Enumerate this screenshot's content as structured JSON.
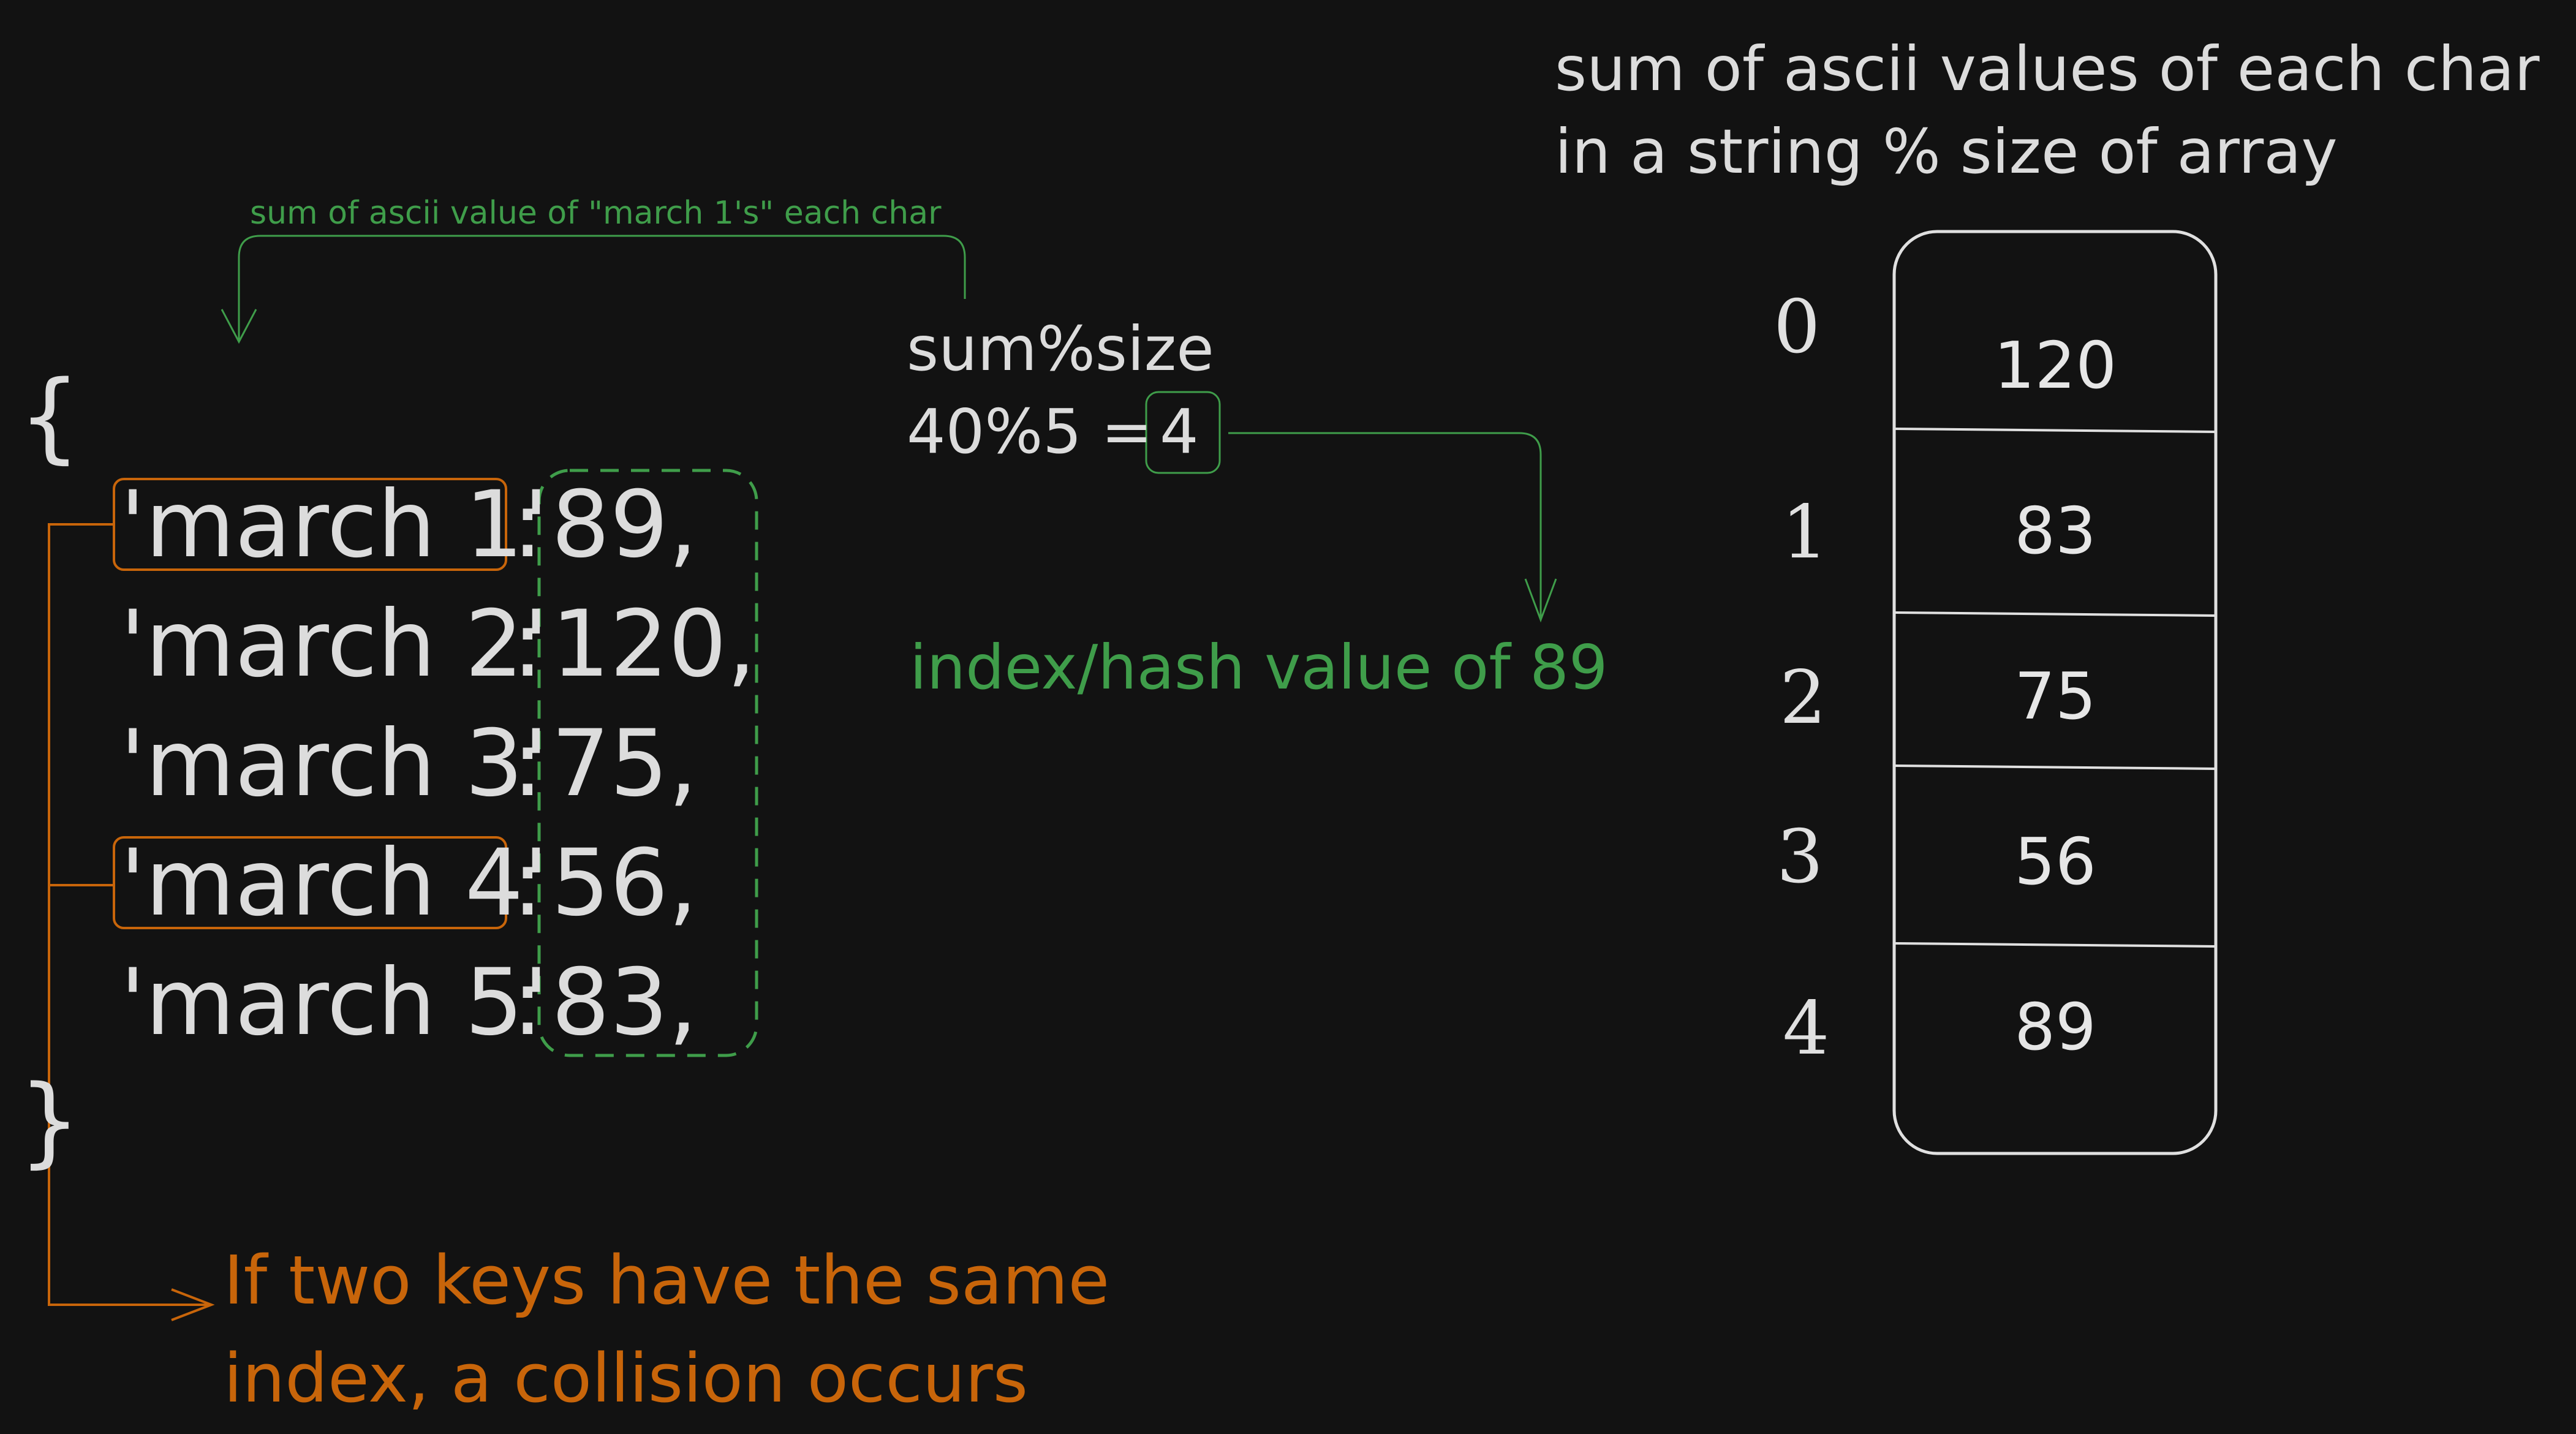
{
  "title_note": {
    "line1": "sum of ascii values of each char",
    "line2": "in a string % size of array"
  },
  "arrow_note": "sum of ascii value of \"march 1's\" each char",
  "formula": {
    "line1": "sum%size",
    "prefix": "40%5 =",
    "result": "4"
  },
  "index_note": "index/hash value of 89",
  "dictionary": {
    "open_brace": "{",
    "close_brace": "}",
    "entries": [
      {
        "key": "'march 1'",
        "colon": ":",
        "value": "89,"
      },
      {
        "key": "'march 2'",
        "colon": ":",
        "value": "120,"
      },
      {
        "key": "'march 3'",
        "colon": ":",
        "value": "75,"
      },
      {
        "key": "'march 4'",
        "colon": ":",
        "value": "56,"
      },
      {
        "key": "'march 5'",
        "colon": ":",
        "value": "83,"
      }
    ]
  },
  "collision_note": {
    "line1": "If two keys have the same",
    "line2": "index, a collision occurs"
  },
  "hash_array": {
    "indices": [
      "0",
      "1",
      "2",
      "3",
      "4"
    ],
    "cells": [
      "120",
      "83",
      "75",
      "56",
      "89"
    ]
  },
  "colors": {
    "background": "#121212",
    "text": "#dcdcdc",
    "orange": "#c8650a",
    "green": "#3f9d4a"
  }
}
